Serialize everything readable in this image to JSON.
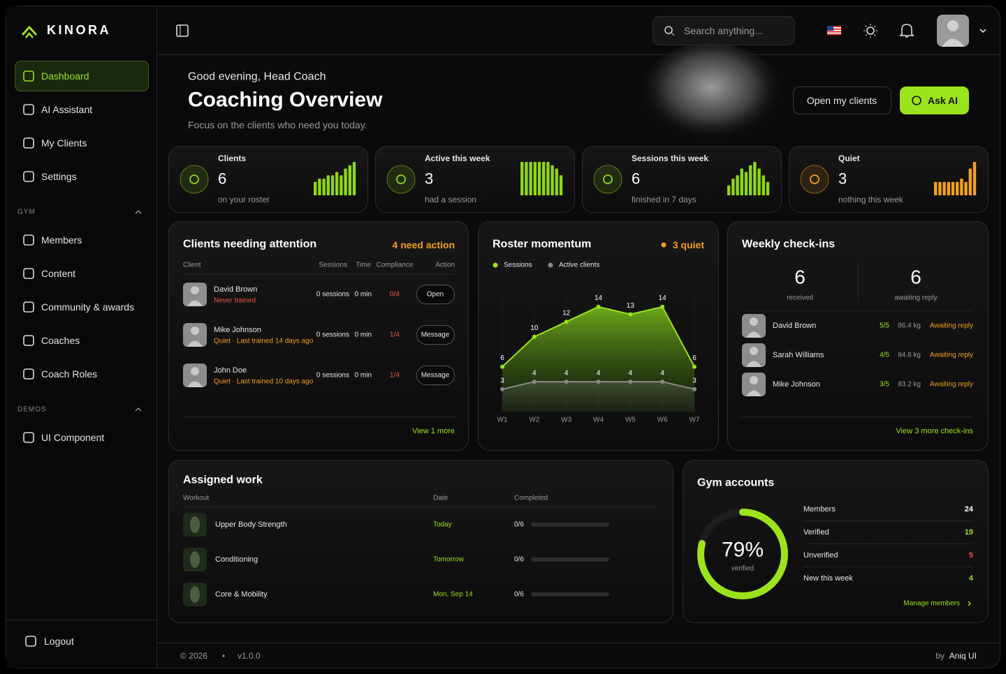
{
  "brand": "KINORA",
  "sidebar": {
    "main": [
      "Dashboard",
      "AI Assistant",
      "My Clients",
      "Settings"
    ],
    "sections": [
      {
        "title": "GYM",
        "items": [
          "Members",
          "Content",
          "Community & awards",
          "Coaches",
          "Coach Roles"
        ]
      },
      {
        "title": "DEMOS",
        "items": [
          "UI Component"
        ]
      }
    ],
    "logout": "Logout"
  },
  "header": {
    "search_placeholder": "Search anything..."
  },
  "hero": {
    "greeting": "Good evening, Head Coach",
    "title": "Coaching Overview",
    "subtitle": "Focus on the clients who need you today.",
    "buttons": [
      "Open my clients",
      "Ask AI"
    ]
  },
  "stats": [
    {
      "label": "Clients",
      "value": 6,
      "caption": "on your roster",
      "color": "#8fd61a",
      "bars": [
        4,
        5,
        5,
        6,
        6,
        7,
        6,
        8,
        9,
        10
      ]
    },
    {
      "label": "Active this week",
      "value": 3,
      "caption": "had a session",
      "color": "#8fd61a",
      "bars": [
        10,
        10,
        10,
        10,
        10,
        10,
        10,
        9,
        8,
        6
      ]
    },
    {
      "label": "Sessions this week",
      "value": 6,
      "caption": "finished in 7 days",
      "color": "#8fd61a",
      "bars": [
        3,
        5,
        6,
        8,
        7,
        9,
        10,
        8,
        6,
        4
      ]
    },
    {
      "label": "Quiet",
      "value": 3,
      "caption": "nothing this week",
      "color": "#f0a020",
      "bars": [
        4,
        4,
        4,
        4,
        4,
        4,
        5,
        4,
        8,
        10
      ]
    }
  ],
  "attention": {
    "title": "Clients needing attention",
    "badge": "4 need action",
    "columns": [
      "Client",
      "Sessions",
      "Time",
      "Compliance",
      "Action"
    ],
    "rows": [
      {
        "name": "David Brown",
        "status": "Never trained",
        "status_color": "#f0564a",
        "sessions": "0 sessions",
        "time": "0 min",
        "compliance": "0/4",
        "action": "Open"
      },
      {
        "name": "Mike Johnson",
        "status": "Quiet · Last trained 14 days ago",
        "status_color": "#f0a020",
        "sessions": "0 sessions",
        "time": "0 min",
        "compliance": "1/4",
        "action": "Message"
      },
      {
        "name": "John Doe",
        "status": "Quiet · Last trained 10 days ago",
        "status_color": "#f0a020",
        "sessions": "0 sessions",
        "time": "0 min",
        "compliance": "1/4",
        "action": "Message"
      }
    ],
    "footer": "View 1 more"
  },
  "momentum": {
    "title": "Roster momentum",
    "badge": "3 quiet",
    "chart": {
      "type": "area",
      "categories": [
        "W1",
        "W2",
        "W3",
        "W4",
        "W5",
        "W6",
        "W7"
      ],
      "ylim": [
        0,
        15
      ],
      "series": [
        {
          "name": "Sessions",
          "color": "#9be31c",
          "values": [
            6,
            10,
            12,
            14,
            13,
            14,
            6
          ]
        },
        {
          "name": "Active clients",
          "color": "#8a8a8a",
          "values": [
            3,
            4,
            4,
            4,
            4,
            4,
            3
          ]
        }
      ]
    }
  },
  "checkins": {
    "title": "Weekly check-ins",
    "received": 6,
    "received_label": "received",
    "awaiting": 6,
    "awaiting_label": "awaiting reply",
    "rows": [
      {
        "name": "David Brown",
        "score": "5/5",
        "weight": "86.4 kg",
        "status": "Awaiting reply"
      },
      {
        "name": "Sarah Williams",
        "score": "4/5",
        "weight": "84.8 kg",
        "status": "Awaiting reply"
      },
      {
        "name": "Mike Johnson",
        "score": "3/5",
        "weight": "83.2 kg",
        "status": "Awaiting reply"
      }
    ],
    "footer": "View 3 more check-ins"
  },
  "assigned": {
    "title": "Assigned work",
    "columns": [
      "Workout",
      "Date",
      "Completed"
    ],
    "rows": [
      {
        "name": "Upper Body Strength",
        "date": "Today",
        "completed": "0/6"
      },
      {
        "name": "Conditioning",
        "date": "Tomorrow",
        "completed": "0/6"
      },
      {
        "name": "Core & Mobility",
        "date": "Mon, Sep 14",
        "completed": "0/6"
      }
    ]
  },
  "gym": {
    "title": "Gym accounts",
    "percent": 79,
    "percent_label": "79%",
    "percent_caption": "verified",
    "rows": [
      {
        "label": "Members",
        "value": 24,
        "color": "#ffffff"
      },
      {
        "label": "Verified",
        "value": 19,
        "color": "#9be31c"
      },
      {
        "label": "Unverified",
        "value": 5,
        "color": "#f0564a"
      },
      {
        "label": "New this week",
        "value": 4,
        "color": "#9be31c"
      }
    ],
    "link": "Manage members"
  },
  "footer": {
    "copyright": "© 2026",
    "version": "v1.0.0",
    "by": "by",
    "author": "Aniq UI"
  }
}
